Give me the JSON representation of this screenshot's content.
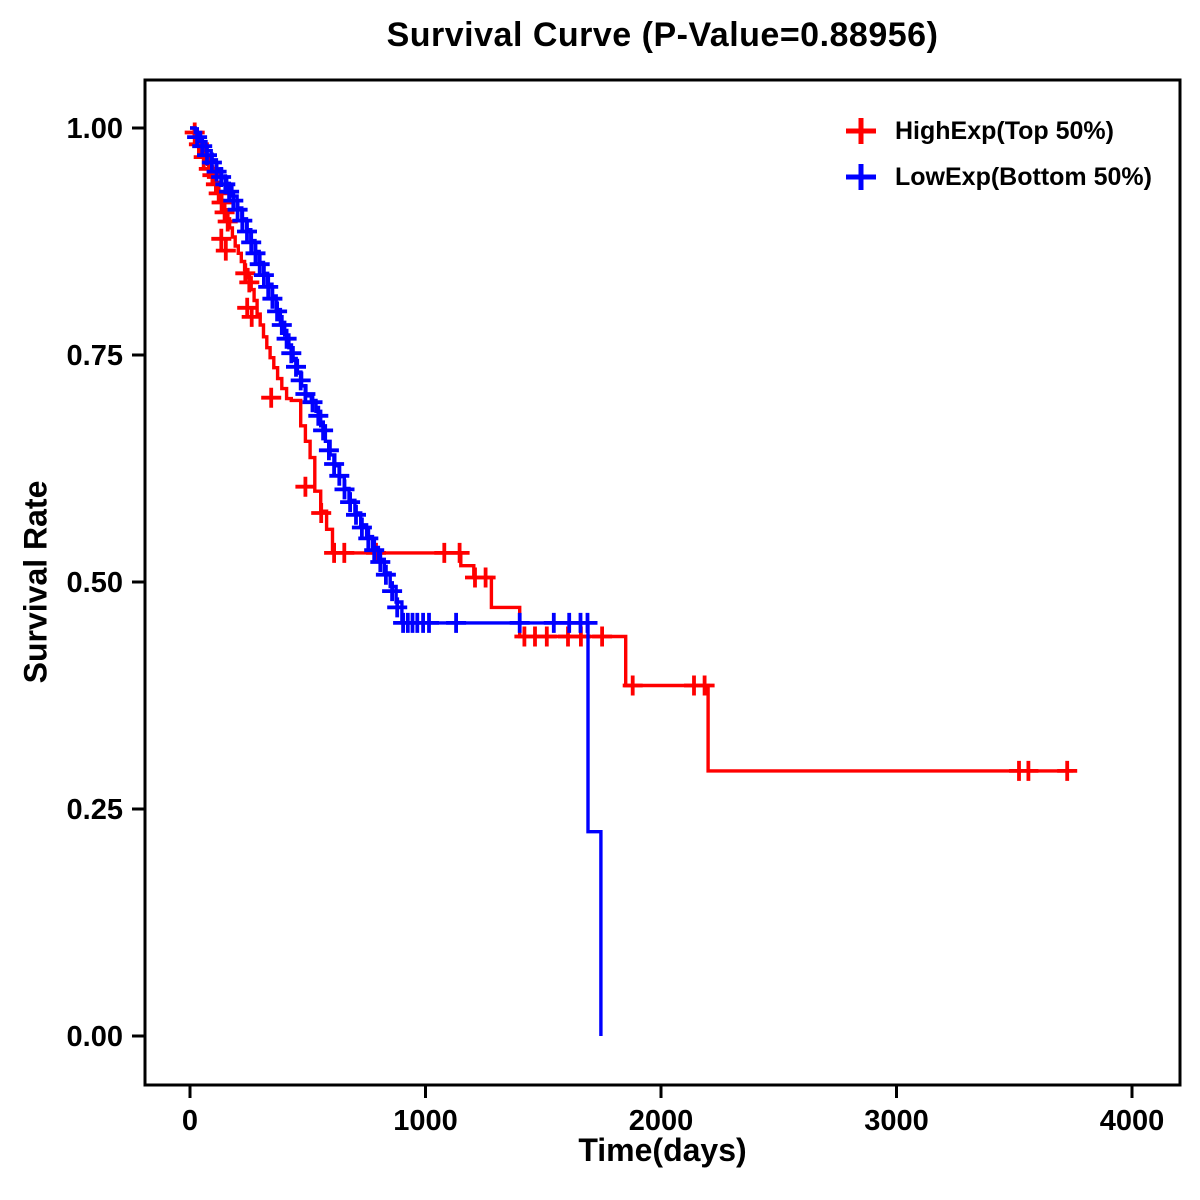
{
  "chart_data": {
    "type": "line",
    "subtype": "kaplan_meier_step_survival",
    "title": "Survival Curve (P-Value=0.88956)",
    "p_value": 0.88956,
    "xlabel": "Time(days)",
    "ylabel": "Survival Rate",
    "xlim": [
      -200,
      4200
    ],
    "ylim": [
      -0.05,
      1.05
    ],
    "x_ticks": [
      0,
      1000,
      2000,
      3000,
      4000
    ],
    "x_tick_labels": [
      "0",
      "1000",
      "2000",
      "3000",
      "4000"
    ],
    "y_ticks": [
      0.0,
      0.25,
      0.5,
      0.75,
      1.0
    ],
    "y_tick_labels": [
      "0.00",
      "0.25",
      "0.50",
      "0.75",
      "1.00"
    ],
    "grid": false,
    "legend_position": "top-right-inside",
    "axis_color": "#000000",
    "series": [
      {
        "name": "HighExp(Top 50%)",
        "color": "#FF0000",
        "steps": [
          [
            0,
            1.0
          ],
          [
            18,
            0.99
          ],
          [
            36,
            0.98
          ],
          [
            55,
            0.97
          ],
          [
            75,
            0.96
          ],
          [
            90,
            0.95
          ],
          [
            105,
            0.94
          ],
          [
            118,
            0.93
          ],
          [
            130,
            0.92
          ],
          [
            142,
            0.91
          ],
          [
            155,
            0.9
          ],
          [
            168,
            0.89
          ],
          [
            180,
            0.88
          ],
          [
            192,
            0.87
          ],
          [
            205,
            0.862
          ],
          [
            218,
            0.853
          ],
          [
            232,
            0.844
          ],
          [
            246,
            0.835
          ],
          [
            260,
            0.822
          ],
          [
            272,
            0.81
          ],
          [
            285,
            0.795
          ],
          [
            298,
            0.783
          ],
          [
            312,
            0.77
          ],
          [
            326,
            0.758
          ],
          [
            340,
            0.747
          ],
          [
            356,
            0.736
          ],
          [
            372,
            0.724
          ],
          [
            390,
            0.713
          ],
          [
            410,
            0.702
          ],
          [
            430,
            0.7
          ],
          [
            470,
            0.672
          ],
          [
            490,
            0.655
          ],
          [
            510,
            0.637
          ],
          [
            530,
            0.6
          ],
          [
            555,
            0.578
          ],
          [
            580,
            0.558
          ],
          [
            605,
            0.532
          ],
          [
            1150,
            0.518
          ],
          [
            1205,
            0.505
          ],
          [
            1280,
            0.472
          ],
          [
            1400,
            0.44
          ],
          [
            1850,
            0.386
          ],
          [
            2200,
            0.292
          ],
          [
            3750,
            0.292
          ]
        ],
        "censors": [
          [
            20,
            0.995
          ],
          [
            38,
            0.982
          ],
          [
            58,
            0.968
          ],
          [
            80,
            0.955
          ],
          [
            95,
            0.948
          ],
          [
            110,
            0.938
          ],
          [
            122,
            0.928
          ],
          [
            134,
            0.918
          ],
          [
            147,
            0.907
          ],
          [
            160,
            0.897
          ],
          [
            133,
            0.878
          ],
          [
            152,
            0.865
          ],
          [
            235,
            0.84
          ],
          [
            252,
            0.83
          ],
          [
            243,
            0.802
          ],
          [
            262,
            0.792
          ],
          [
            345,
            0.703
          ],
          [
            490,
            0.605
          ],
          [
            557,
            0.576
          ],
          [
            612,
            0.532
          ],
          [
            655,
            0.532
          ],
          [
            790,
            0.532
          ],
          [
            1080,
            0.532
          ],
          [
            1145,
            0.532
          ],
          [
            1210,
            0.505
          ],
          [
            1255,
            0.505
          ],
          [
            1420,
            0.44
          ],
          [
            1465,
            0.44
          ],
          [
            1515,
            0.44
          ],
          [
            1605,
            0.44
          ],
          [
            1660,
            0.44
          ],
          [
            1750,
            0.44
          ],
          [
            1880,
            0.386
          ],
          [
            2140,
            0.386
          ],
          [
            2185,
            0.386
          ],
          [
            3520,
            0.292
          ],
          [
            3560,
            0.292
          ],
          [
            3725,
            0.292
          ]
        ]
      },
      {
        "name": "LowExp(Bottom 50%)",
        "color": "#0000FF",
        "steps": [
          [
            0,
            1.0
          ],
          [
            22,
            0.995
          ],
          [
            45,
            0.985
          ],
          [
            68,
            0.975
          ],
          [
            90,
            0.965
          ],
          [
            112,
            0.955
          ],
          [
            134,
            0.945
          ],
          [
            156,
            0.935
          ],
          [
            178,
            0.925
          ],
          [
            200,
            0.912
          ],
          [
            220,
            0.9
          ],
          [
            240,
            0.888
          ],
          [
            258,
            0.876
          ],
          [
            276,
            0.864
          ],
          [
            294,
            0.852
          ],
          [
            312,
            0.84
          ],
          [
            330,
            0.828
          ],
          [
            348,
            0.815
          ],
          [
            366,
            0.8
          ],
          [
            384,
            0.786
          ],
          [
            402,
            0.772
          ],
          [
            420,
            0.758
          ],
          [
            438,
            0.744
          ],
          [
            456,
            0.73
          ],
          [
            474,
            0.716
          ],
          [
            492,
            0.705
          ],
          [
            515,
            0.7
          ],
          [
            535,
            0.688
          ],
          [
            555,
            0.672
          ],
          [
            575,
            0.655
          ],
          [
            595,
            0.64
          ],
          [
            615,
            0.628
          ],
          [
            635,
            0.616
          ],
          [
            655,
            0.603
          ],
          [
            675,
            0.59
          ],
          [
            700,
            0.576
          ],
          [
            725,
            0.563
          ],
          [
            750,
            0.55
          ],
          [
            775,
            0.538
          ],
          [
            800,
            0.525
          ],
          [
            825,
            0.51
          ],
          [
            850,
            0.495
          ],
          [
            875,
            0.478
          ],
          [
            900,
            0.455
          ],
          [
            1690,
            0.455
          ],
          [
            1690,
            0.225
          ],
          [
            1745,
            0.225
          ],
          [
            1745,
            0.0
          ]
        ],
        "censors": [
          [
            30,
            0.99
          ],
          [
            52,
            0.98
          ],
          [
            72,
            0.97
          ],
          [
            93,
            0.962
          ],
          [
            113,
            0.952
          ],
          [
            132,
            0.946
          ],
          [
            150,
            0.938
          ],
          [
            166,
            0.93
          ],
          [
            184,
            0.92
          ],
          [
            202,
            0.91
          ],
          [
            222,
            0.898
          ],
          [
            242,
            0.886
          ],
          [
            260,
            0.874
          ],
          [
            278,
            0.862
          ],
          [
            296,
            0.85
          ],
          [
            314,
            0.838
          ],
          [
            332,
            0.825
          ],
          [
            350,
            0.812
          ],
          [
            370,
            0.798
          ],
          [
            390,
            0.783
          ],
          [
            410,
            0.768
          ],
          [
            430,
            0.752
          ],
          [
            450,
            0.737
          ],
          [
            470,
            0.722
          ],
          [
            490,
            0.707
          ],
          [
            520,
            0.698
          ],
          [
            545,
            0.683
          ],
          [
            565,
            0.667
          ],
          [
            590,
            0.645
          ],
          [
            612,
            0.63
          ],
          [
            634,
            0.617
          ],
          [
            656,
            0.602
          ],
          [
            680,
            0.588
          ],
          [
            705,
            0.574
          ],
          [
            730,
            0.56
          ],
          [
            757,
            0.548
          ],
          [
            782,
            0.535
          ],
          [
            808,
            0.522
          ],
          [
            832,
            0.508
          ],
          [
            858,
            0.49
          ],
          [
            880,
            0.472
          ],
          [
            905,
            0.455
          ],
          [
            925,
            0.455
          ],
          [
            945,
            0.455
          ],
          [
            965,
            0.455
          ],
          [
            990,
            0.455
          ],
          [
            1015,
            0.455
          ],
          [
            1130,
            0.455
          ],
          [
            1400,
            0.455
          ],
          [
            1545,
            0.455
          ],
          [
            1610,
            0.455
          ],
          [
            1658,
            0.455
          ],
          [
            1688,
            0.455
          ]
        ]
      }
    ]
  }
}
